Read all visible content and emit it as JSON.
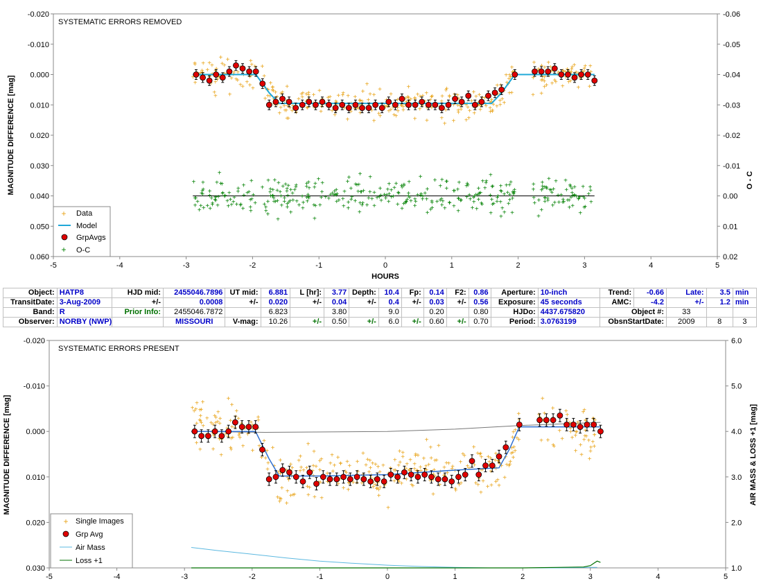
{
  "colors": {
    "data": "#e8a317",
    "model": "#1fa8d8",
    "grpavg": "#e00000",
    "oc": "#008000",
    "airmass": "#5bb8e0",
    "loss": "#007000",
    "model2": "#2f6fd0"
  },
  "chart_data": [
    {
      "type": "scatter",
      "title": "SYSTEMATIC ERRORS REMOVED",
      "xlabel": "HOURS",
      "ylabel": "MAGNITUDE DIFFERENCE [mag]",
      "y2label": "O - C",
      "xlim": [
        -5,
        5
      ],
      "ylim": [
        -0.02,
        0.06
      ],
      "y2lim": [
        -0.06,
        0.02
      ],
      "xticks": [
        "-5",
        "-4",
        "-3",
        "-2",
        "-1",
        "0",
        "1",
        "2",
        "3",
        "4",
        "5"
      ],
      "yticks": [
        "-0.020",
        "-0.010",
        "0.000",
        "0.010",
        "0.020",
        "0.030",
        "0.040",
        "0.050",
        "0.060"
      ],
      "y2ticks": [
        "-0.06",
        "-0.05",
        "-0.04",
        "-0.03",
        "-0.02",
        "-0.01",
        "0.00",
        "0.01",
        "0.02"
      ],
      "legend": [
        "Data",
        "Model",
        "GrpAvgs",
        "O-C"
      ],
      "legend_position": "bottom-left",
      "series": [
        {
          "name": "Model",
          "x": [
            -2.9,
            -1.95,
            -1.75,
            -1.6,
            1.6,
            1.75,
            1.95,
            3.15
          ],
          "y": [
            0.0,
            0.0,
            0.006,
            0.0095,
            0.0095,
            0.006,
            0.0,
            0.0
          ]
        },
        {
          "name": "GrpAvgs",
          "x": [
            -2.85,
            -2.75,
            -2.65,
            -2.55,
            -2.45,
            -2.35,
            -2.25,
            -2.15,
            -2.05,
            -1.95,
            -1.85,
            -1.75,
            -1.65,
            -1.55,
            -1.45,
            -1.35,
            -1.25,
            -1.15,
            -1.05,
            -0.95,
            -0.85,
            -0.75,
            -0.65,
            -0.55,
            -0.45,
            -0.35,
            -0.25,
            -0.15,
            -0.05,
            0.05,
            0.15,
            0.25,
            0.35,
            0.45,
            0.55,
            0.65,
            0.75,
            0.85,
            0.95,
            1.05,
            1.15,
            1.25,
            1.35,
            1.45,
            1.55,
            1.65,
            1.75,
            1.95,
            2.25,
            2.35,
            2.45,
            2.55,
            2.65,
            2.75,
            2.85,
            2.95,
            3.05,
            3.15
          ],
          "y": [
            0.0,
            0.001,
            0.002,
            0.0,
            0.001,
            -0.001,
            -0.003,
            -0.002,
            -0.001,
            -0.001,
            0.003,
            0.01,
            0.009,
            0.008,
            0.009,
            0.011,
            0.01,
            0.009,
            0.01,
            0.009,
            0.01,
            0.011,
            0.01,
            0.011,
            0.01,
            0.011,
            0.011,
            0.01,
            0.011,
            0.009,
            0.01,
            0.008,
            0.01,
            0.01,
            0.009,
            0.01,
            0.01,
            0.011,
            0.01,
            0.008,
            0.009,
            0.007,
            0.01,
            0.009,
            0.007,
            0.006,
            0.005,
            0.0,
            -0.001,
            -0.001,
            -0.001,
            -0.002,
            0.0,
            0.0,
            0.001,
            0.0,
            0.0,
            0.002
          ]
        },
        {
          "name": "Data",
          "count": 380
        },
        {
          "name": "O-C",
          "count": 380
        }
      ]
    },
    {
      "type": "scatter",
      "title": "SYSTEMATIC ERRORS PRESENT",
      "xlabel": "",
      "ylabel": "MAGNITUDE DIFFERENCE [mag]",
      "y2label": "AIR MASS & LOSS +1 [mag]",
      "xlim": [
        -5,
        5
      ],
      "ylim": [
        -0.02,
        0.03
      ],
      "y2lim": [
        6.0,
        1.0
      ],
      "xticks": [
        "-5",
        "-4",
        "-3",
        "-2",
        "-1",
        "0",
        "1",
        "2",
        "3",
        "4",
        "5"
      ],
      "yticks": [
        "-0.020",
        "-0.010",
        "0.000",
        "0.010",
        "0.020",
        "0.030"
      ],
      "y2ticks": [
        "6.0",
        "5.0",
        "4.0",
        "3.0",
        "2.0",
        "1.0"
      ],
      "legend": [
        "Single Images",
        "Grp Avg",
        "Air Mass",
        "Loss +1"
      ],
      "legend_position": "bottom-left",
      "series": [
        {
          "name": "Grp Avg",
          "x": [
            -2.85,
            -2.75,
            -2.65,
            -2.55,
            -2.45,
            -2.35,
            -2.25,
            -2.15,
            -2.05,
            -1.95,
            -1.85,
            -1.75,
            -1.65,
            -1.55,
            -1.45,
            -1.35,
            -1.25,
            -1.15,
            -1.05,
            -0.95,
            -0.85,
            -0.75,
            -0.65,
            -0.55,
            -0.45,
            -0.35,
            -0.25,
            -0.15,
            -0.05,
            0.05,
            0.15,
            0.25,
            0.35,
            0.45,
            0.55,
            0.65,
            0.75,
            0.85,
            0.95,
            1.05,
            1.15,
            1.25,
            1.35,
            1.45,
            1.55,
            1.65,
            1.75,
            1.95,
            2.25,
            2.35,
            2.45,
            2.55,
            2.65,
            2.75,
            2.85,
            2.95,
            3.05,
            3.15
          ],
          "y": [
            0.0,
            0.001,
            0.001,
            0.0,
            0.001,
            0.0,
            -0.002,
            -0.001,
            -0.001,
            -0.001,
            0.004,
            0.0105,
            0.01,
            0.0085,
            0.009,
            0.01,
            0.011,
            0.009,
            0.0115,
            0.01,
            0.0105,
            0.0105,
            0.01,
            0.0105,
            0.01,
            0.0105,
            0.011,
            0.0105,
            0.011,
            0.0095,
            0.01,
            0.009,
            0.0095,
            0.01,
            0.0095,
            0.01,
            0.0105,
            0.0105,
            0.011,
            0.01,
            0.0095,
            0.0065,
            0.0095,
            0.0075,
            0.0075,
            0.0055,
            0.0035,
            -0.0015,
            -0.0025,
            -0.0025,
            -0.0025,
            -0.0035,
            -0.0015,
            -0.0015,
            -0.001,
            -0.0015,
            -0.0015,
            0.0
          ]
        },
        {
          "name": "Single Images",
          "count": 380
        },
        {
          "name": "Air Mass",
          "x": [
            -2.9,
            -2.5,
            -2.0,
            -1.5,
            -1.0,
            -0.5,
            0.0,
            0.5,
            1.0,
            1.5,
            2.0,
            2.5,
            3.0,
            3.1
          ],
          "y": [
            1.45,
            1.38,
            1.3,
            1.22,
            1.15,
            1.1,
            1.06,
            1.03,
            1.01,
            1.0,
            1.0,
            1.0,
            1.01,
            1.01
          ]
        },
        {
          "name": "Loss +1",
          "x": [
            -2.9,
            -2.0,
            -1.0,
            0.0,
            1.0,
            2.0,
            2.5,
            2.9,
            3.0,
            3.05,
            3.1,
            3.15
          ],
          "y": [
            1.0,
            1.0,
            1.0,
            1.0,
            1.0,
            1.0,
            1.01,
            1.02,
            1.05,
            1.1,
            1.15,
            1.12
          ]
        },
        {
          "name": "Model",
          "x": [
            -2.9,
            -1.95,
            -1.75,
            -1.6,
            -1.0,
            0.0,
            1.0,
            1.65,
            1.8,
            1.95,
            3.15
          ],
          "y": [
            0.0,
            0.0,
            0.006,
            0.0098,
            0.0098,
            0.0095,
            0.0085,
            0.008,
            0.004,
            -0.001,
            -0.001
          ]
        },
        {
          "name": "Air Mass curve",
          "x": [
            -2.9,
            -1.8,
            0.0,
            1.0,
            1.95,
            3.15
          ],
          "y": [
            4.0,
            3.98,
            4.0,
            4.05,
            4.13,
            4.2
          ]
        }
      ]
    }
  ],
  "info": {
    "r1": {
      "object_l": "Object:",
      "object": "HATP8",
      "hjd_l": "HJD mid:",
      "hjd": "2455046.7896",
      "ut_l": "UT mid:",
      "ut": "6.881",
      "lhr_l": "L [hr]:",
      "lhr": "3.77",
      "depth_l": "Depth:",
      "depth": "10.4",
      "fp_l": "Fp:",
      "fp": "0.14",
      "f2_l": "F2:",
      "f2": "0.86",
      "ap_l": "Aperture:",
      "ap": "10-inch",
      "trend_l": "Trend:",
      "trend": "-0.66",
      "late_l": "Late:",
      "late": "3.5",
      "min": "min"
    },
    "r2": {
      "td_l": "TransitDate:",
      "td": "3-Aug-2009",
      "pm": "+/-",
      "hjd_e": "0.0008",
      "ut_e": "0.020",
      "lhr_e": "0.04",
      "depth_e": "0.4",
      "fp_e": "0.03",
      "f2_e": "0.56",
      "exp_l": "Exposure:",
      "exp": "45 seconds",
      "amc_l": "AMC:",
      "amc": "-4.2",
      "late_e": "1.2",
      "min": "min"
    },
    "r3": {
      "band_l": "Band:",
      "band": "R",
      "prior_l": "Prior Info:",
      "prior": "2455046.7872",
      "ut_p": "6.823",
      "lhr_p": "3.80",
      "depth_p": "9.0",
      "fp_p": "0.20",
      "f2_p": "0.80",
      "hjdo_l": "HJDo:",
      "hjdo": "4437.675820",
      "obj_l": "Object #:",
      "obj": "33"
    },
    "r4": {
      "obs_l": "Observer:",
      "obs": "NORBY (NWP)",
      "loc": "MISSOURI",
      "vmag_l": "V-mag:",
      "vmag": "10.26",
      "pm": "+/-",
      "vmag_e": "0.50",
      "e2": "6.0",
      "e3": "0.60",
      "e4": "0.70",
      "per_l": "Period:",
      "per": "3.0763199",
      "osd_l": "ObsnStartDate:",
      "y": "2009",
      "m": "8",
      "d": "3"
    }
  }
}
